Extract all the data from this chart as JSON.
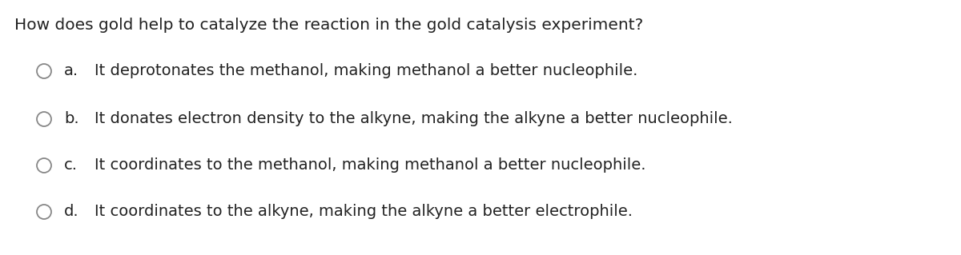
{
  "background_color": "#ffffff",
  "question": "How does gold help to catalyze the reaction in the gold catalysis experiment?",
  "question_fontsize": 14.5,
  "options": [
    {
      "label": "a.",
      "text": "It deprotonates the methanol, making methanol a better nucleophile."
    },
    {
      "label": "b.",
      "text": "It donates electron density to the alkyne, making the alkyne a better nucleophile."
    },
    {
      "label": "c.",
      "text": "It coordinates to the methanol, making methanol a better nucleophile."
    },
    {
      "label": "d.",
      "text": "It coordinates to the alkyne, making the alkyne a better electrophile."
    }
  ],
  "option_fontsize": 14,
  "text_color": "#222222",
  "circle_edge_color": "#888888",
  "circle_face_color": "#ffffff",
  "circle_linewidth": 1.3
}
